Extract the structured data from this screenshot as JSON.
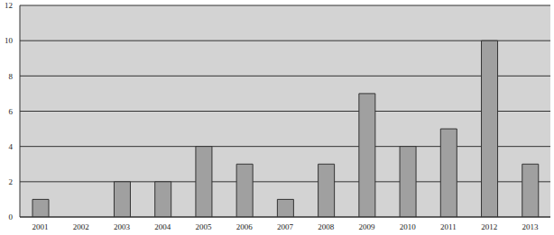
{
  "chart_data": {
    "type": "bar",
    "categories": [
      "2001",
      "2002",
      "2003",
      "2004",
      "2005",
      "2006",
      "2007",
      "2008",
      "2009",
      "2010",
      "2011",
      "2012",
      "2013"
    ],
    "values": [
      1,
      0,
      2,
      2,
      4,
      3,
      1,
      3,
      7,
      4,
      5,
      10,
      3
    ],
    "color": "#a0a0a0",
    "ylim": [
      0,
      12
    ],
    "yticks": [
      0,
      2,
      4,
      6,
      8,
      10,
      12
    ],
    "grid": true
  }
}
